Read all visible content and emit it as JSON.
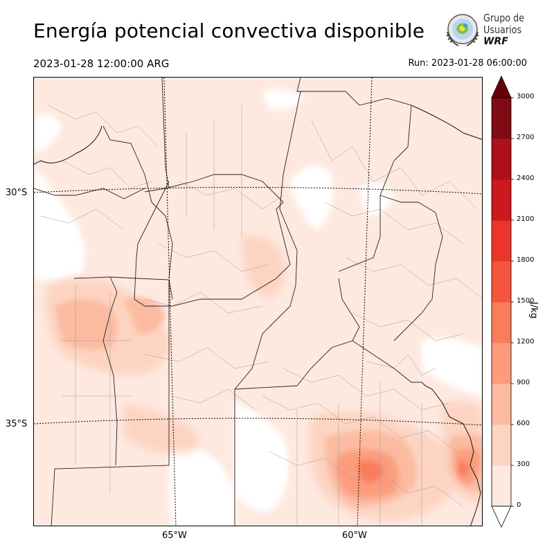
{
  "title": "Energía potencial convectiva disponible",
  "valid_time": "2023-01-28 12:00:00 ARG",
  "run_time": "Run: 2023-01-28 06:00:00",
  "logo": {
    "line1": "Grupo de",
    "line2": "Usuarios",
    "line3": "WRF"
  },
  "map": {
    "lat_labels": [
      "30°S",
      "35°S"
    ],
    "lon_labels": [
      "65°W",
      "60°W"
    ]
  },
  "colorbar": {
    "unit": "J/kg",
    "ticks": [
      "0",
      "300",
      "600",
      "900",
      "1200",
      "1500",
      "1800",
      "2100",
      "2400",
      "2700",
      "3000"
    ],
    "colors": [
      "#fee9e0",
      "#fdd4c2",
      "#fcbba1",
      "#fc9c7d",
      "#fb7c5c",
      "#f6553d",
      "#ea362a",
      "#cc191e",
      "#ad1117",
      "#800b14"
    ],
    "extend_low_color": "#ffffff",
    "extend_high_color": "#67000d"
  }
}
